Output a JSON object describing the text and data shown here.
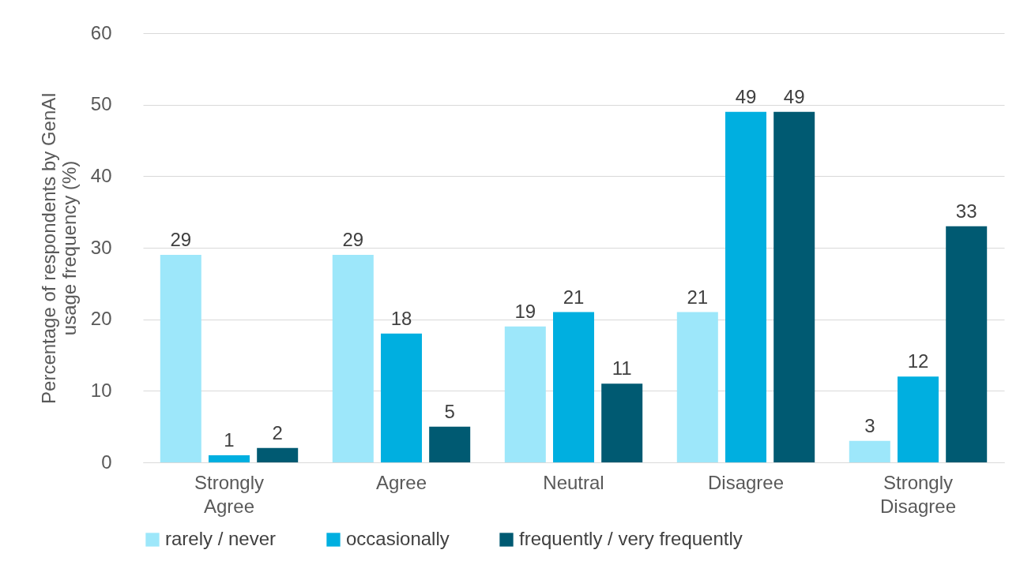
{
  "chart_data": {
    "type": "bar",
    "ylabel": "Percentage of respondents by GenAI usage frequency (%)",
    "categories": [
      "Strongly Agree",
      "Agree",
      "Neutral",
      "Disagree",
      "Strongly Disagree"
    ],
    "series": [
      {
        "name": "rarely / never",
        "color": "#9de7fa",
        "values": [
          29,
          29,
          19,
          21,
          3
        ]
      },
      {
        "name": "occasionally",
        "color": "#00afe0",
        "values": [
          1,
          18,
          21,
          49,
          12
        ]
      },
      {
        "name": "frequently / very frequently",
        "color": "#005a72",
        "values": [
          2,
          5,
          11,
          49,
          33
        ]
      }
    ],
    "ylim": [
      0,
      60
    ],
    "yticks": [
      0,
      10,
      20,
      30,
      40,
      50,
      60
    ],
    "grid": "y",
    "legend": "bottom",
    "data_labels": true
  }
}
